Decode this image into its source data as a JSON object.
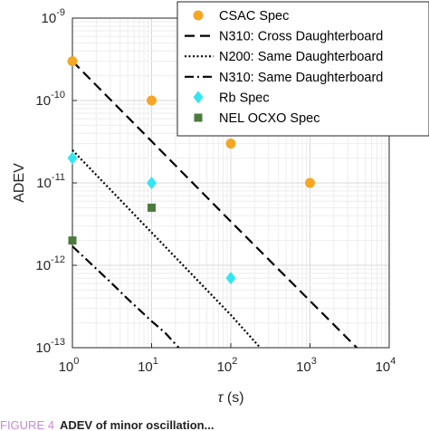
{
  "chart_data": {
    "type": "line",
    "xlabel_symbol": "τ",
    "xlabel_unit": " (s)",
    "ylabel": "ADEV",
    "xscale": "log",
    "yscale": "log",
    "xlim": [
      1,
      10000
    ],
    "ylim": [
      1e-13,
      1e-09
    ],
    "grid": true,
    "minor_grid": true,
    "legend_position": "top-right",
    "x_ticks": [
      {
        "base": "10",
        "exp": "0",
        "value": 1
      },
      {
        "base": "10",
        "exp": "1",
        "value": 10
      },
      {
        "base": "10",
        "exp": "2",
        "value": 100
      },
      {
        "base": "10",
        "exp": "3",
        "value": 1000
      },
      {
        "base": "10",
        "exp": "4",
        "value": 10000
      }
    ],
    "y_ticks": [
      {
        "base": "10",
        "exp": "-9",
        "value": 1e-09
      },
      {
        "base": "10",
        "exp": "-10",
        "value": 1e-10
      },
      {
        "base": "10",
        "exp": "-11",
        "value": 1e-11
      },
      {
        "base": "10",
        "exp": "-12",
        "value": 1e-12
      },
      {
        "base": "10",
        "exp": "-13",
        "value": 1e-13
      }
    ],
    "series": [
      {
        "name": "CSAC Spec",
        "kind": "marker",
        "marker": "circle",
        "color": "#f5a623",
        "x": [
          1,
          10,
          100,
          1000
        ],
        "y": [
          3e-10,
          1e-10,
          3e-11,
          1e-11
        ]
      },
      {
        "name": "N310: Cross Daughterboard",
        "kind": "line",
        "dash": "dashed",
        "color": "#000000",
        "x": [
          1,
          10,
          100,
          1000,
          3900
        ],
        "y": [
          3e-10,
          3.2e-11,
          3.4e-12,
          3.7e-13,
          1e-13
        ]
      },
      {
        "name": "N200: Same Daughterboard",
        "kind": "line",
        "dash": "dotted",
        "color": "#000000",
        "x": [
          1,
          10,
          100,
          235
        ],
        "y": [
          2.5e-11,
          2.5e-12,
          2.5e-13,
          1e-13
        ]
      },
      {
        "name": "N310: Same Daughterboard",
        "kind": "line",
        "dash": "dashdot",
        "color": "#000000",
        "x": [
          1,
          3,
          5,
          10,
          15,
          22
        ],
        "y": [
          1.7e-12,
          6.3e-13,
          3.9e-13,
          2.1e-13,
          1.5e-13,
          1e-13
        ]
      },
      {
        "name": "Rb Spec",
        "kind": "marker",
        "marker": "diamond",
        "color": "#33e6f2",
        "x": [
          1,
          10,
          100
        ],
        "y": [
          2e-11,
          1e-11,
          7e-13
        ]
      },
      {
        "name": "NEL OCXO Spec",
        "kind": "marker",
        "marker": "square",
        "color": "#4c7a3f",
        "x": [
          1,
          10
        ],
        "y": [
          2e-12,
          5e-12
        ]
      }
    ]
  },
  "caption": {
    "prefix": "FIGURE 4",
    "bold": "ADEV of minor oscillation..."
  }
}
